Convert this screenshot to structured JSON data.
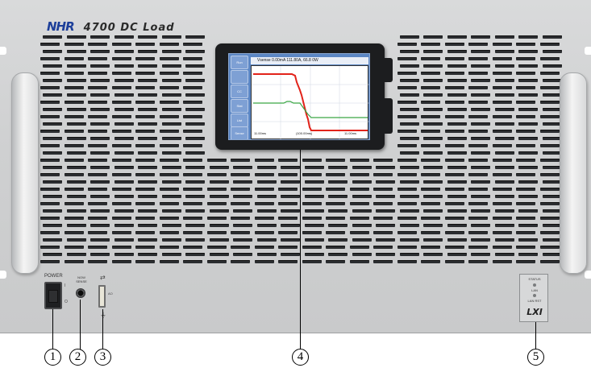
{
  "brand": {
    "logo": "NHR",
    "model": "4700 DC Load"
  },
  "display": {
    "header": "Vsense  0.00mA   111.80A,  66.8 0W",
    "softkeys": [
      "Run",
      "",
      "CC",
      "Stat",
      "List",
      "Sense"
    ],
    "footer": [
      "11.00ms",
      "(100.00ms)",
      "11.00ms"
    ],
    "waveforms": [
      {
        "name": "trace-green",
        "color": "#3aa645"
      },
      {
        "name": "trace-red",
        "color": "#e2231a"
      }
    ]
  },
  "power": {
    "label": "POWER",
    "on_mark": "I",
    "off_mark": "O"
  },
  "remote": {
    "label": "NOW\nSENSE"
  },
  "usb": {
    "side_label": "AO"
  },
  "lxi": {
    "status": "STATUS",
    "lan": "LAN",
    "lan_rst": "LAN RST",
    "logo": "LXI"
  },
  "callouts": [
    {
      "label": "1"
    },
    {
      "label": "2"
    },
    {
      "label": "3"
    },
    {
      "label": "4"
    },
    {
      "label": "5"
    }
  ]
}
